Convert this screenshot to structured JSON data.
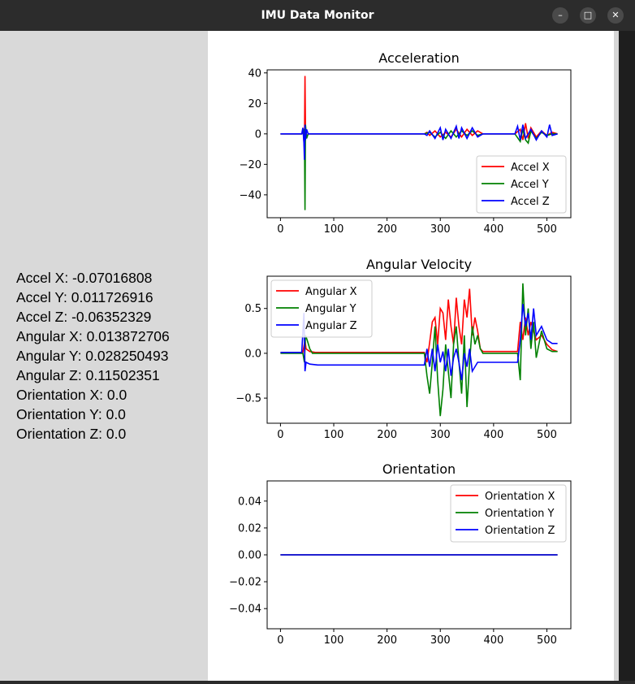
{
  "window": {
    "title": "IMU Data Monitor"
  },
  "readings": [
    "Accel X: -0.07016808",
    "Accel Y: 0.011726916",
    "Accel Z: -0.06352329",
    "Angular X: 0.013872706",
    "Angular Y: 0.028250493",
    "Angular Z: 0.11502351",
    "Orientation X: 0.0",
    "Orientation Y: 0.0",
    "Orientation Z: 0.0"
  ],
  "colors": {
    "x": "#ff0000",
    "y": "#008000",
    "z": "#0000ff"
  },
  "chart_data": [
    {
      "type": "line",
      "title": "Acceleration",
      "xlim": [
        -25,
        545
      ],
      "ylim": [
        -55,
        42
      ],
      "xticks": [
        0,
        100,
        200,
        300,
        400,
        500
      ],
      "yticks": [
        -40,
        -20,
        0,
        20,
        40
      ],
      "ytick_labels": [
        "−40",
        "−20",
        "0",
        "20",
        "40"
      ],
      "legend": "bottom-right",
      "series": [
        {
          "name": "Accel X",
          "color": "#ff0000",
          "points": [
            [
              0,
              0
            ],
            [
              40,
              0
            ],
            [
              43,
              1
            ],
            [
              45,
              -10
            ],
            [
              46,
              38
            ],
            [
              47,
              2
            ],
            [
              49,
              -2
            ],
            [
              52,
              0
            ],
            [
              60,
              0
            ],
            [
              270,
              0
            ],
            [
              275,
              1
            ],
            [
              280,
              -1
            ],
            [
              290,
              2
            ],
            [
              300,
              -2
            ],
            [
              310,
              1
            ],
            [
              320,
              -2
            ],
            [
              330,
              3
            ],
            [
              340,
              -2
            ],
            [
              350,
              3
            ],
            [
              360,
              -1
            ],
            [
              370,
              2
            ],
            [
              380,
              0
            ],
            [
              440,
              0
            ],
            [
              450,
              3
            ],
            [
              455,
              -4
            ],
            [
              460,
              7
            ],
            [
              465,
              -3
            ],
            [
              470,
              4
            ],
            [
              480,
              -2
            ],
            [
              490,
              2
            ],
            [
              500,
              -1
            ],
            [
              510,
              1
            ],
            [
              520,
              0
            ]
          ]
        },
        {
          "name": "Accel Y",
          "color": "#008000",
          "points": [
            [
              0,
              0
            ],
            [
              40,
              0
            ],
            [
              43,
              2
            ],
            [
              45,
              3
            ],
            [
              46,
              -50
            ],
            [
              47,
              6
            ],
            [
              49,
              -3
            ],
            [
              52,
              0
            ],
            [
              60,
              0
            ],
            [
              270,
              0
            ],
            [
              280,
              1
            ],
            [
              290,
              -2
            ],
            [
              300,
              1
            ],
            [
              310,
              -3
            ],
            [
              320,
              2
            ],
            [
              330,
              -2
            ],
            [
              340,
              2
            ],
            [
              350,
              -1
            ],
            [
              360,
              2
            ],
            [
              370,
              -1
            ],
            [
              380,
              0
            ],
            [
              440,
              0
            ],
            [
              450,
              -5
            ],
            [
              455,
              3
            ],
            [
              460,
              -4
            ],
            [
              465,
              -6
            ],
            [
              470,
              2
            ],
            [
              480,
              -3
            ],
            [
              490,
              1
            ],
            [
              500,
              -1
            ],
            [
              510,
              0
            ],
            [
              520,
              0
            ]
          ]
        },
        {
          "name": "Accel Z",
          "color": "#0000ff",
          "points": [
            [
              0,
              0
            ],
            [
              40,
              0
            ],
            [
              42,
              4
            ],
            [
              44,
              -6
            ],
            [
              45,
              -17
            ],
            [
              46,
              6
            ],
            [
              47,
              -4
            ],
            [
              49,
              3
            ],
            [
              52,
              0
            ],
            [
              60,
              0
            ],
            [
              270,
              0
            ],
            [
              275,
              -1
            ],
            [
              280,
              2
            ],
            [
              290,
              -3
            ],
            [
              300,
              4
            ],
            [
              305,
              -4
            ],
            [
              310,
              3
            ],
            [
              320,
              -3
            ],
            [
              330,
              5
            ],
            [
              335,
              -3
            ],
            [
              340,
              4
            ],
            [
              350,
              -3
            ],
            [
              360,
              4
            ],
            [
              370,
              -2
            ],
            [
              380,
              0
            ],
            [
              440,
              0
            ],
            [
              445,
              5
            ],
            [
              450,
              -4
            ],
            [
              455,
              6
            ],
            [
              460,
              -3
            ],
            [
              470,
              3
            ],
            [
              480,
              -4
            ],
            [
              490,
              2
            ],
            [
              500,
              -2
            ],
            [
              505,
              6
            ],
            [
              510,
              -1
            ],
            [
              520,
              0
            ]
          ]
        }
      ]
    },
    {
      "type": "line",
      "title": "Angular Velocity",
      "xlim": [
        -25,
        545
      ],
      "ylim": [
        -0.78,
        0.86
      ],
      "xticks": [
        0,
        100,
        200,
        300,
        400,
        500
      ],
      "yticks": [
        -0.5,
        0,
        0.5
      ],
      "ytick_labels": [
        "−0.5",
        "0.0",
        "0.5"
      ],
      "legend": "top-left",
      "series": [
        {
          "name": "Angular X",
          "color": "#ff0000",
          "points": [
            [
              0,
              0.01
            ],
            [
              42,
              0.01
            ],
            [
              44,
              0.08
            ],
            [
              46,
              0.15
            ],
            [
              48,
              0.05
            ],
            [
              55,
              0.02
            ],
            [
              65,
              0.01
            ],
            [
              270,
              0.01
            ],
            [
              275,
              -0.1
            ],
            [
              280,
              0.12
            ],
            [
              285,
              0.35
            ],
            [
              290,
              0.4
            ],
            [
              295,
              0.1
            ],
            [
              300,
              0.5
            ],
            [
              305,
              0.45
            ],
            [
              310,
              0.15
            ],
            [
              315,
              0.6
            ],
            [
              320,
              0.3
            ],
            [
              325,
              0.1
            ],
            [
              330,
              0.62
            ],
            [
              335,
              0.3
            ],
            [
              340,
              0.1
            ],
            [
              345,
              0.6
            ],
            [
              350,
              0.4
            ],
            [
              355,
              0.72
            ],
            [
              360,
              0.2
            ],
            [
              365,
              0.4
            ],
            [
              370,
              0.25
            ],
            [
              375,
              0.05
            ],
            [
              380,
              0.02
            ],
            [
              445,
              0.02
            ],
            [
              450,
              0.35
            ],
            [
              455,
              0.15
            ],
            [
              460,
              0.4
            ],
            [
              465,
              0.2
            ],
            [
              470,
              0.35
            ],
            [
              480,
              0.15
            ],
            [
              490,
              0.2
            ],
            [
              500,
              0.1
            ],
            [
              510,
              0.04
            ],
            [
              520,
              0.02
            ]
          ]
        },
        {
          "name": "Angular Y",
          "color": "#008000",
          "points": [
            [
              0,
              0
            ],
            [
              42,
              0
            ],
            [
              45,
              -0.1
            ],
            [
              47,
              0.2
            ],
            [
              50,
              0.15
            ],
            [
              55,
              0.05
            ],
            [
              60,
              0.0
            ],
            [
              270,
              0.0
            ],
            [
              275,
              -0.25
            ],
            [
              280,
              -0.45
            ],
            [
              285,
              -0.1
            ],
            [
              290,
              0.3
            ],
            [
              295,
              -0.3
            ],
            [
              300,
              -0.7
            ],
            [
              305,
              -0.4
            ],
            [
              310,
              0.1
            ],
            [
              315,
              -0.2
            ],
            [
              320,
              -0.5
            ],
            [
              325,
              0.1
            ],
            [
              330,
              0.3
            ],
            [
              335,
              -0.1
            ],
            [
              340,
              -0.45
            ],
            [
              345,
              0.2
            ],
            [
              350,
              -0.6
            ],
            [
              355,
              -0.1
            ],
            [
              360,
              0.3
            ],
            [
              365,
              0.1
            ],
            [
              370,
              0.2
            ],
            [
              375,
              0.05
            ],
            [
              380,
              0.0
            ],
            [
              445,
              0.0
            ],
            [
              450,
              -0.3
            ],
            [
              455,
              0.78
            ],
            [
              460,
              0.2
            ],
            [
              465,
              0.5
            ],
            [
              470,
              0.05
            ],
            [
              475,
              0.35
            ],
            [
              480,
              -0.05
            ],
            [
              490,
              0.25
            ],
            [
              500,
              0.05
            ],
            [
              510,
              0.02
            ],
            [
              520,
              0.02
            ]
          ]
        },
        {
          "name": "Angular Z",
          "color": "#0000ff",
          "points": [
            [
              0,
              0.01
            ],
            [
              40,
              0.01
            ],
            [
              44,
              0.45
            ],
            [
              46,
              -0.2
            ],
            [
              48,
              -0.1
            ],
            [
              55,
              -0.12
            ],
            [
              70,
              -0.13
            ],
            [
              270,
              -0.13
            ],
            [
              275,
              0.05
            ],
            [
              280,
              -0.15
            ],
            [
              285,
              0.05
            ],
            [
              290,
              -0.2
            ],
            [
              295,
              0.1
            ],
            [
              300,
              -0.1
            ],
            [
              305,
              0.02
            ],
            [
              310,
              -0.2
            ],
            [
              315,
              0.05
            ],
            [
              320,
              -0.25
            ],
            [
              325,
              -0.05
            ],
            [
              330,
              0.05
            ],
            [
              335,
              -0.1
            ],
            [
              340,
              -0.3
            ],
            [
              345,
              0.0
            ],
            [
              350,
              -0.15
            ],
            [
              355,
              0.05
            ],
            [
              360,
              -0.2
            ],
            [
              370,
              -0.1
            ],
            [
              380,
              -0.1
            ],
            [
              445,
              -0.1
            ],
            [
              450,
              0.15
            ],
            [
              455,
              0.55
            ],
            [
              460,
              0.3
            ],
            [
              465,
              0.45
            ],
            [
              470,
              0.15
            ],
            [
              475,
              0.5
            ],
            [
              480,
              0.2
            ],
            [
              490,
              0.3
            ],
            [
              500,
              0.15
            ],
            [
              510,
              0.11
            ],
            [
              520,
              0.11
            ]
          ]
        }
      ]
    },
    {
      "type": "line",
      "title": "Orientation",
      "xlim": [
        -25,
        545
      ],
      "ylim": [
        -0.055,
        0.055
      ],
      "xticks": [
        0,
        100,
        200,
        300,
        400,
        500
      ],
      "yticks": [
        -0.04,
        -0.02,
        0,
        0.02,
        0.04
      ],
      "ytick_labels": [
        "−0.04",
        "−0.02",
        "0.00",
        "0.02",
        "0.04"
      ],
      "legend": "top-right",
      "series": [
        {
          "name": "Orientation X",
          "color": "#ff0000",
          "points": [
            [
              0,
              0
            ],
            [
              520,
              0
            ]
          ]
        },
        {
          "name": "Orientation Y",
          "color": "#008000",
          "points": [
            [
              0,
              0
            ],
            [
              520,
              0
            ]
          ]
        },
        {
          "name": "Orientation Z",
          "color": "#0000ff",
          "points": [
            [
              0,
              0
            ],
            [
              520,
              0
            ]
          ]
        }
      ]
    }
  ]
}
